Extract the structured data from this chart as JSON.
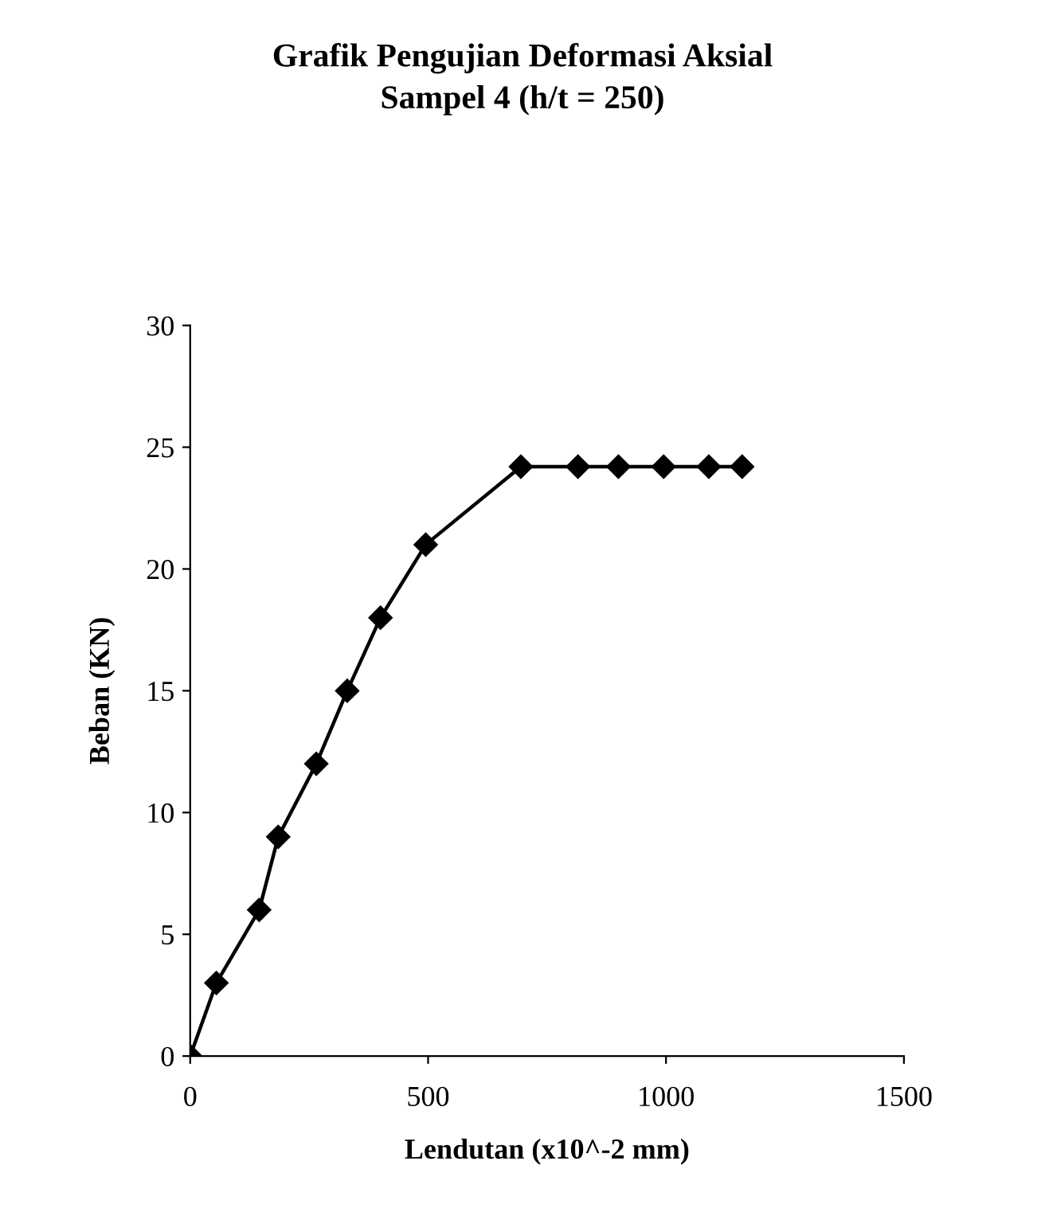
{
  "chart_data": {
    "type": "line",
    "title": "Grafik Pengujian Deformasi Aksial\nSampel 4 (h/t = 250)",
    "xlabel": "Lendutan (x10^-2 mm)",
    "ylabel": "Beban (KN)",
    "series": [
      {
        "color": "#000000",
        "x": [
          0,
          55,
          145,
          185,
          265,
          330,
          400,
          495,
          695,
          815,
          900,
          995,
          1090,
          1160
        ],
        "values": [
          0,
          3,
          6,
          9,
          12,
          15,
          18,
          21,
          24.2,
          24.2,
          24.2,
          24.2,
          24.2,
          24.2
        ]
      }
    ],
    "xlim": [
      0,
      1500
    ],
    "xticks": [
      0,
      500,
      1000,
      1500
    ],
    "ylim": [
      0,
      30
    ],
    "yticks": [
      0,
      5,
      10,
      15,
      20,
      25,
      30
    ],
    "marker": "diamond",
    "line_style": "solid",
    "grid": false,
    "legend": false
  }
}
